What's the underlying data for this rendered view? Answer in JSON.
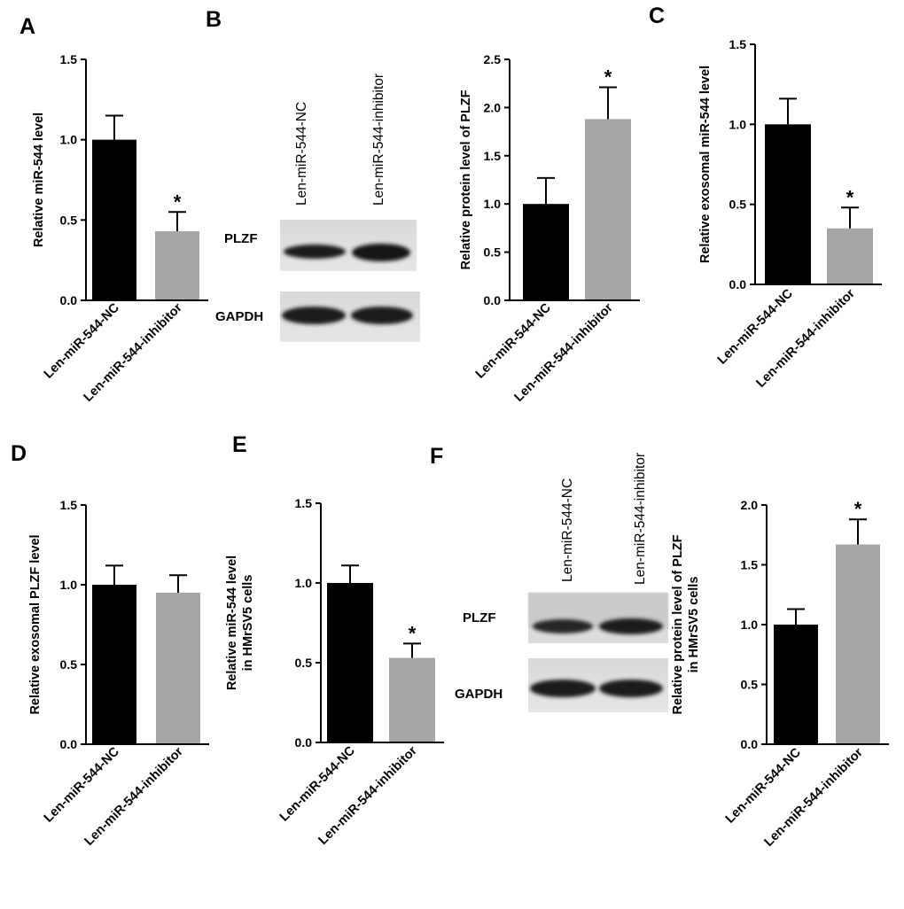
{
  "figure": {
    "panels": [
      "A",
      "B",
      "C",
      "D",
      "E",
      "F"
    ],
    "blots": [
      {
        "panel": "B",
        "lanes": [
          "Len-miR-544-NC",
          "Len-miR-544-inhibitor"
        ],
        "rows": [
          "PLZF",
          "GAPDH"
        ]
      },
      {
        "panel": "F",
        "lanes": [
          "Len-miR-544-NC",
          "Len-miR-544-inhibitor"
        ],
        "rows": [
          "PLZF",
          "GAPDH"
        ]
      }
    ]
  },
  "chart_data": [
    {
      "panel": "A",
      "type": "bar",
      "categories": [
        "Len-miR-544-NC",
        "Len-miR-544-inhibitor"
      ],
      "values": [
        1.0,
        0.43
      ],
      "errors": [
        0.15,
        0.12
      ],
      "significance": [
        "",
        "*"
      ],
      "colors": [
        "#000000",
        "#a6a6a6"
      ],
      "ylabel": [
        "Relative miR-544 level"
      ],
      "ylim": [
        0,
        1.5
      ],
      "yticks": [
        "0.0",
        "0.5",
        "1.0",
        "1.5"
      ]
    },
    {
      "panel": "B",
      "type": "bar",
      "categories": [
        "Len-miR-544-NC",
        "Len-miR-544-inhibitor"
      ],
      "values": [
        1.0,
        1.88
      ],
      "errors": [
        0.27,
        0.33
      ],
      "significance": [
        "",
        "*"
      ],
      "colors": [
        "#000000",
        "#a6a6a6"
      ],
      "ylabel": [
        "Relative protein level of PLZF"
      ],
      "ylim": [
        0,
        2.5
      ],
      "yticks": [
        "0.0",
        "0.5",
        "1.0",
        "1.5",
        "2.0",
        "2.5"
      ]
    },
    {
      "panel": "C",
      "type": "bar",
      "categories": [
        "Len-miR-544-NC",
        "Len-miR-544-inhibitor"
      ],
      "values": [
        1.0,
        0.35
      ],
      "errors": [
        0.16,
        0.13
      ],
      "significance": [
        "",
        "*"
      ],
      "colors": [
        "#000000",
        "#a6a6a6"
      ],
      "ylabel": [
        "Relative exosomal miR-544 level"
      ],
      "ylim": [
        0,
        1.5
      ],
      "yticks": [
        "0.0",
        "0.5",
        "1.0",
        "1.5"
      ]
    },
    {
      "panel": "D",
      "type": "bar",
      "categories": [
        "Len-miR-544-NC",
        "Len-miR-544-inhibitor"
      ],
      "values": [
        1.0,
        0.95
      ],
      "errors": [
        0.12,
        0.11
      ],
      "significance": [
        "",
        ""
      ],
      "colors": [
        "#000000",
        "#a6a6a6"
      ],
      "ylabel": [
        "Relative exosomal PLZF level"
      ],
      "ylim": [
        0,
        1.5
      ],
      "yticks": [
        "0.0",
        "0.5",
        "1.0",
        "1.5"
      ]
    },
    {
      "panel": "E",
      "type": "bar",
      "categories": [
        "Len-miR-544-NC",
        "Len-miR-544-inhibitor"
      ],
      "values": [
        1.0,
        0.53
      ],
      "errors": [
        0.11,
        0.09
      ],
      "significance": [
        "",
        "*"
      ],
      "colors": [
        "#000000",
        "#a6a6a6"
      ],
      "ylabel": [
        "Relative miR-544 level",
        "in HMrSV5 cells"
      ],
      "ylim": [
        0,
        1.5
      ],
      "yticks": [
        "0.0",
        "0.5",
        "1.0",
        "1.5"
      ]
    },
    {
      "panel": "F",
      "type": "bar",
      "categories": [
        "Len-miR-544-NC",
        "Len-miR-544-inhibitor"
      ],
      "values": [
        1.0,
        1.67
      ],
      "errors": [
        0.13,
        0.21
      ],
      "significance": [
        "",
        "*"
      ],
      "colors": [
        "#000000",
        "#a6a6a6"
      ],
      "ylabel": [
        "Relative protein level of PLZF",
        "in HMrSV5 cells"
      ],
      "ylim": [
        0,
        2.0
      ],
      "yticks": [
        "0.0",
        "0.5",
        "1.0",
        "1.5",
        "2.0"
      ]
    }
  ]
}
